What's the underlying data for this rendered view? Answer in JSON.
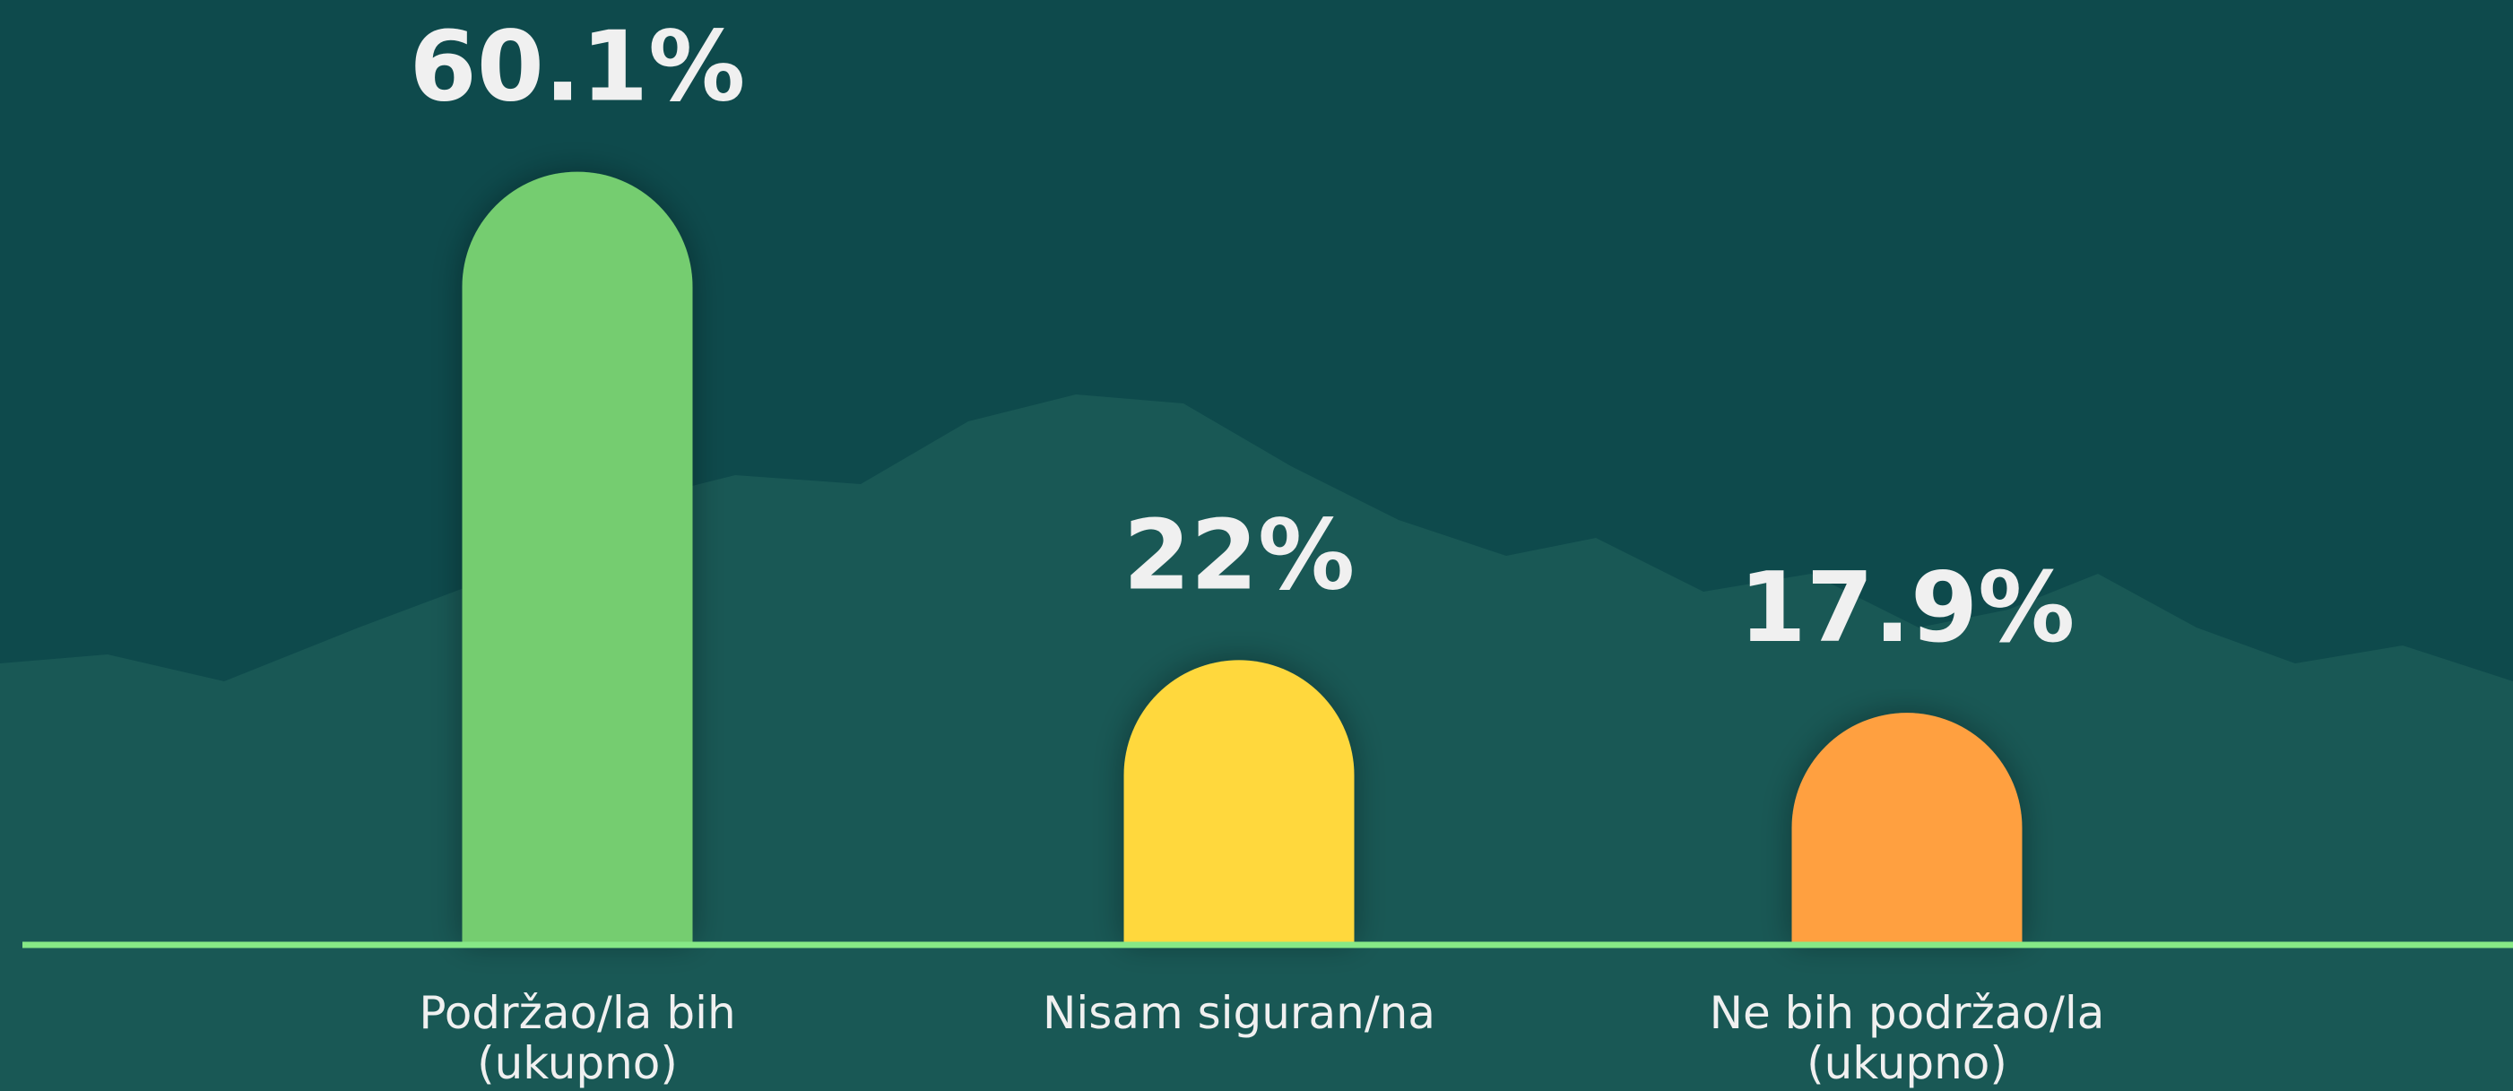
{
  "chart_data": {
    "type": "bar",
    "categories": [
      "Podržao/la bih (ukupno)",
      "Nisam siguran/na",
      "Ne bih podržao/la (ukupno)"
    ],
    "values": [
      60.1,
      22,
      17.9
    ],
    "value_labels": [
      "60.1%",
      "22%",
      "17.9%"
    ],
    "colors": [
      "#74cd70",
      "#ffd83d",
      "#ffa040"
    ],
    "ylim": [
      0,
      70
    ]
  }
}
